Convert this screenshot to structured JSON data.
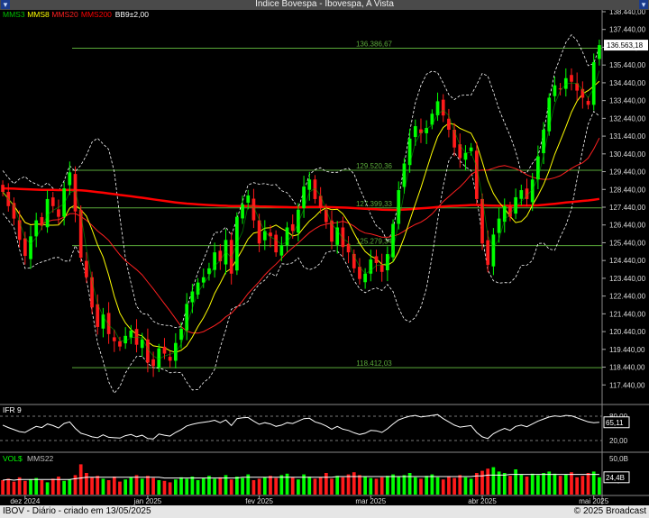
{
  "window": {
    "title": "Indice Bovespa - Ibovespa, A Vista"
  },
  "footer": {
    "left": "IBOV - Diário - criado em 13/05/2025",
    "right": "© 2025 Broadcast"
  },
  "colors": {
    "up": "#00ff00",
    "down": "#ff1a1a",
    "mms3": "#00c000",
    "mms8": "#ffff00",
    "mms20": "#ff2020",
    "mms200": "#ff0000",
    "bb": "#ffffff",
    "hline": "#5aaa3a",
    "grid": "#555555"
  },
  "chart_data": {
    "type": "candlestick",
    "legend": [
      {
        "label": "MMS3",
        "color": "#00c000"
      },
      {
        "label": "MMS8",
        "color": "#ffff00"
      },
      {
        "label": "MMS20",
        "color": "#ff2020"
      },
      {
        "label": "MMS200",
        "color": "#ff0000"
      },
      {
        "label": "BB9±2,00",
        "color": "#ffffff"
      }
    ],
    "price_range": [
      116440,
      138440
    ],
    "y_ticks": [
      "138.440,00",
      "137.440,00",
      "136.440,00",
      "135.440,00",
      "134.440,00",
      "133.440,00",
      "132.440,00",
      "131.440,00",
      "130.440,00",
      "129.440,00",
      "128.440,00",
      "127.440,00",
      "126.440,00",
      "125.440,00",
      "124.440,00",
      "123.440,00",
      "122.440,00",
      "121.440,00",
      "120.440,00",
      "119.440,00",
      "118.440,00",
      "117.440,00"
    ],
    "last_price_label": "136.563,18",
    "hlines": [
      {
        "value": 136386.67,
        "label": "136.386,67"
      },
      {
        "value": 129520.36,
        "label": "129.520,36"
      },
      {
        "value": 127399.33,
        "label": "127.399,33"
      },
      {
        "value": 125279.34,
        "label": "125.279,34"
      },
      {
        "value": 118412.03,
        "label": "118.412,03"
      }
    ],
    "closes": [
      128300,
      127500,
      126800,
      125600,
      124700,
      125800,
      126700,
      126400,
      127900,
      127500,
      126900,
      128500,
      129400,
      127200,
      124600,
      123500,
      121800,
      120700,
      121400,
      120300,
      119900,
      119600,
      120200,
      120500,
      119700,
      120000,
      118700,
      118500,
      119500,
      119200,
      118800,
      119800,
      120600,
      122000,
      122700,
      123200,
      123500,
      124000,
      124900,
      124400,
      125600,
      123700,
      126900,
      127600,
      128100,
      126700,
      125400,
      126100,
      125800,
      124900,
      125300,
      126300,
      126100,
      127300,
      128600,
      129000,
      127900,
      127400,
      126600,
      125500,
      126300,
      125200,
      124900,
      124000,
      123400,
      123700,
      124500,
      124300,
      123800,
      124800,
      126500,
      128400,
      129900,
      131300,
      132000,
      131600,
      131900,
      132700,
      133400,
      132600,
      131800,
      130800,
      130200,
      130500,
      130800,
      127900,
      125400,
      124200,
      125900,
      126800,
      127500,
      126900,
      128000,
      128400,
      127900,
      129000,
      130300,
      131800,
      133600,
      134300,
      134100,
      134700,
      134500,
      134000,
      133600,
      133200,
      135600,
      136560
    ],
    "ifr": {
      "label": "IFR 9",
      "value_label": "65,11",
      "ticks": [
        "80,00",
        "20,00"
      ],
      "values": [
        58,
        52,
        47,
        42,
        40,
        48,
        55,
        52,
        61,
        57,
        51,
        62,
        66,
        50,
        38,
        34,
        29,
        27,
        34,
        28,
        27,
        26,
        32,
        35,
        29,
        33,
        25,
        24,
        36,
        33,
        31,
        40,
        47,
        56,
        60,
        63,
        65,
        67,
        70,
        64,
        71,
        57,
        74,
        76,
        77,
        68,
        60,
        64,
        61,
        55,
        58,
        64,
        62,
        68,
        74,
        75,
        66,
        62,
        56,
        48,
        55,
        48,
        45,
        39,
        35,
        38,
        45,
        44,
        40,
        49,
        61,
        71,
        76,
        80,
        82,
        78,
        80,
        82,
        84,
        74,
        66,
        58,
        53,
        55,
        57,
        40,
        29,
        25,
        37,
        44,
        50,
        45,
        55,
        58,
        54,
        61,
        68,
        73,
        78,
        81,
        79,
        82,
        81,
        76,
        71,
        66,
        64,
        65
      ]
    },
    "volume": {
      "label": "VOL$",
      "ma_label": "MMS22",
      "value_label": "24,4B",
      "ticks": [
        "50,0B",
        "20,0B"
      ],
      "values": [
        20,
        22,
        18,
        24,
        19,
        21,
        23,
        20,
        17,
        22,
        25,
        19,
        21,
        27,
        42,
        30,
        24,
        26,
        22,
        20,
        25,
        18,
        21,
        24,
        27,
        22,
        26,
        23,
        20,
        19,
        17,
        21,
        24,
        22,
        25,
        20,
        23,
        26,
        22,
        24,
        27,
        21,
        25,
        23,
        28,
        20,
        22,
        24,
        26,
        23,
        27,
        29,
        24,
        21,
        28,
        25,
        22,
        24,
        30,
        22,
        26,
        24,
        28,
        31,
        27,
        25,
        23,
        22,
        24,
        26,
        28,
        25,
        27,
        30,
        24,
        22,
        26,
        28,
        24,
        21,
        25,
        23,
        27,
        24,
        22,
        30,
        33,
        36,
        38,
        32,
        30,
        26,
        35,
        28,
        25,
        29,
        27,
        30,
        32,
        29,
        26,
        28,
        31,
        24,
        26,
        30,
        32,
        24
      ],
      "ma": [
        20,
        21,
        20,
        21,
        21,
        21,
        21,
        21,
        21,
        21,
        21,
        21,
        21,
        22,
        23,
        24,
        24,
        24,
        24,
        24,
        24,
        24,
        24,
        24,
        24,
        24,
        24,
        24,
        24,
        23,
        23,
        23,
        23,
        23,
        23,
        23,
        23,
        23,
        23,
        23,
        23,
        23,
        23,
        24,
        24,
        24,
        24,
        24,
        24,
        24,
        24,
        24,
        24,
        24,
        24,
        24,
        24,
        24,
        24,
        24,
        25,
        25,
        25,
        25,
        25,
        25,
        25,
        25,
        25,
        25,
        25,
        25,
        25,
        25,
        25,
        25,
        25,
        25,
        25,
        25,
        25,
        25,
        25,
        25,
        25,
        26,
        26,
        27,
        27,
        27,
        27,
        28,
        28,
        28,
        28,
        28,
        28,
        28,
        28,
        28,
        28,
        28,
        28,
        28,
        28,
        28,
        28,
        28
      ]
    },
    "x_labels": [
      {
        "label": "dez 2024",
        "index": 4
      },
      {
        "label": "jan 2025",
        "index": 26
      },
      {
        "label": "fev 2025",
        "index": 46
      },
      {
        "label": "mar 2025",
        "index": 66
      },
      {
        "label": "abr 2025",
        "index": 86
      },
      {
        "label": "mai 2025",
        "index": 106
      }
    ]
  }
}
